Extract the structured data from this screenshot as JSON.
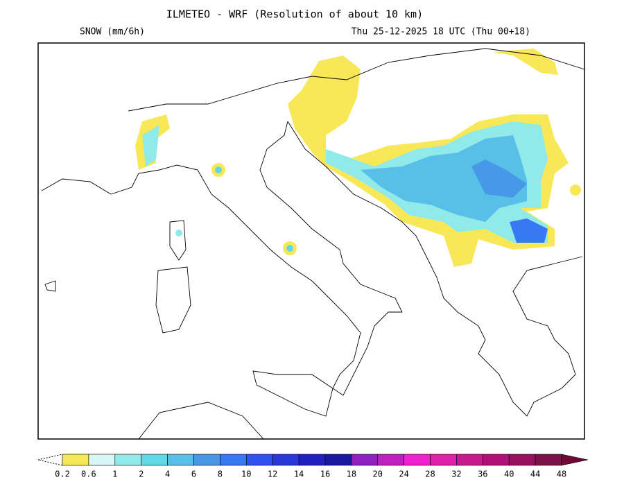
{
  "header": {
    "title": "ILMETEO - WRF (Resolution of about 10 km)",
    "field": "SNOW (mm/6h)",
    "valid_time": "Thu 25-12-2025 18 UTC (Thu 00+18)"
  },
  "colorbar": {
    "labels": [
      0.2,
      0.6,
      1,
      2,
      4,
      6,
      8,
      10,
      12,
      14,
      16,
      18,
      20,
      24,
      28,
      32,
      36,
      40,
      44,
      48
    ],
    "colors": [
      "#f8e858",
      "#d8f8f8",
      "#90eaea",
      "#60d8e8",
      "#58c0e8",
      "#4898e8",
      "#3878f0",
      "#3050f0",
      "#2838d8",
      "#2020c0",
      "#1818a0",
      "#9020c0",
      "#c020c0",
      "#f020d0",
      "#e020a8",
      "#c81890",
      "#b01078",
      "#981060",
      "#801048"
    ],
    "over_color": "#700838"
  }
}
